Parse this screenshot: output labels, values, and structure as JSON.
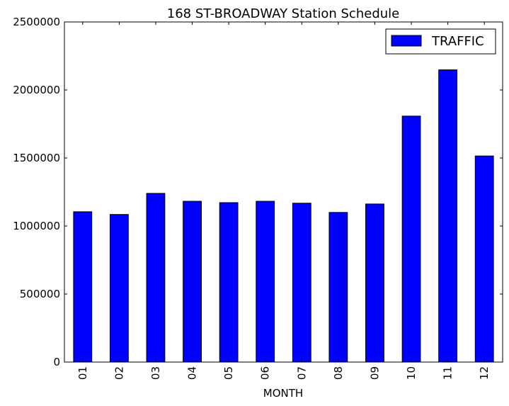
{
  "chart_data": {
    "type": "bar",
    "title": "168 ST-BROADWAY Station Schedule",
    "xlabel": "MONTH",
    "ylabel": "",
    "categories": [
      "01",
      "02",
      "03",
      "04",
      "05",
      "06",
      "07",
      "08",
      "09",
      "10",
      "11",
      "12"
    ],
    "series": [
      {
        "name": "TRAFFIC",
        "color": "#0000ff",
        "values": [
          1105000,
          1085000,
          1240000,
          1182000,
          1172000,
          1182000,
          1168000,
          1100000,
          1162000,
          1808000,
          2148000,
          1515000
        ]
      }
    ],
    "ylim": [
      0,
      2500000
    ],
    "yticks": [
      "0",
      "500000",
      "1000000",
      "1500000",
      "2000000",
      "2500000"
    ],
    "legend_position": "top-right",
    "grid": false
  }
}
